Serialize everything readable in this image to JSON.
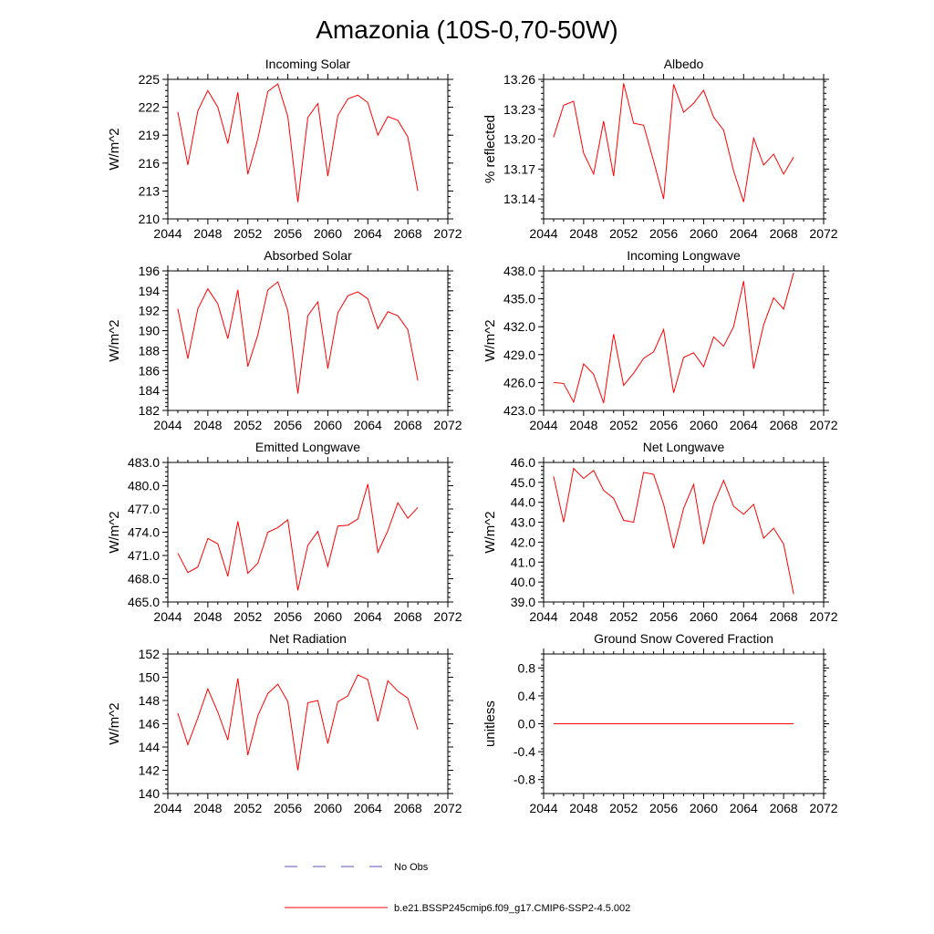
{
  "title": "Amazonia (10S-0,70-50W)",
  "colors": {
    "model": "#ff0000",
    "obs": "#5555bb",
    "frame": "#000000"
  },
  "legend": [
    {
      "label": "No Obs",
      "style": "dashed",
      "color": "#5555bb"
    },
    {
      "label": "b.e21.BSSP245cmip6.f09_g17.CMIP6-SSP2-4.5.002",
      "style": "solid",
      "color": "#ff0000"
    }
  ],
  "chart_data": [
    {
      "type": "line",
      "title": "Incoming Solar",
      "xlabel": "",
      "ylabel": "W/m^2",
      "xlim": [
        2044,
        2072
      ],
      "ylim": [
        210,
        225
      ],
      "xticks": [
        2044,
        2048,
        2052,
        2056,
        2060,
        2064,
        2068,
        2072
      ],
      "yticks": [
        "210",
        "213",
        "216",
        "219",
        "222",
        "225"
      ],
      "x": [
        2045,
        2046,
        2047,
        2048,
        2049,
        2050,
        2051,
        2052,
        2053,
        2054,
        2055,
        2056,
        2057,
        2058,
        2059,
        2060,
        2061,
        2062,
        2063,
        2064,
        2065,
        2066,
        2067,
        2068,
        2069
      ],
      "series": [
        {
          "name": "b.e21.BSSP245cmip6.f09_g17.CMIP6-SSP2-4.5.002",
          "values": [
            221.5,
            215.8,
            221.6,
            223.8,
            222.0,
            218.1,
            223.6,
            214.8,
            218.6,
            223.7,
            224.5,
            221.0,
            211.8,
            220.9,
            222.4,
            214.6,
            221.1,
            222.9,
            223.3,
            222.5,
            219.0,
            221.0,
            220.6,
            218.8,
            213.0
          ]
        }
      ]
    },
    {
      "type": "line",
      "title": "Albedo",
      "xlabel": "",
      "ylabel": "% reflected",
      "xlim": [
        2044,
        2072
      ],
      "ylim": [
        13.12,
        13.26
      ],
      "xticks": [
        2044,
        2048,
        2052,
        2056,
        2060,
        2064,
        2068,
        2072
      ],
      "yticks": [
        "13.14",
        "13.17",
        "13.20",
        "13.23",
        "13.26"
      ],
      "x": [
        2045,
        2046,
        2047,
        2048,
        2049,
        2050,
        2051,
        2052,
        2053,
        2054,
        2055,
        2056,
        2057,
        2058,
        2059,
        2060,
        2061,
        2062,
        2063,
        2064,
        2065,
        2066,
        2067,
        2068,
        2069
      ],
      "series": [
        {
          "name": "b.e21.BSSP245cmip6.f09_g17.CMIP6-SSP2-4.5.002",
          "values": [
            13.202,
            13.234,
            13.238,
            13.186,
            13.165,
            13.218,
            13.163,
            13.256,
            13.216,
            13.214,
            13.178,
            13.14,
            13.255,
            13.227,
            13.236,
            13.249,
            13.222,
            13.209,
            13.168,
            13.137,
            13.201,
            13.174,
            13.185,
            13.165,
            13.182
          ]
        }
      ]
    },
    {
      "type": "line",
      "title": "Absorbed Solar",
      "xlabel": "",
      "ylabel": "W/m^2",
      "xlim": [
        2044,
        2072
      ],
      "ylim": [
        182,
        196
      ],
      "xticks": [
        2044,
        2048,
        2052,
        2056,
        2060,
        2064,
        2068,
        2072
      ],
      "yticks": [
        "182",
        "184",
        "186",
        "188",
        "190",
        "192",
        "194",
        "196"
      ],
      "x": [
        2045,
        2046,
        2047,
        2048,
        2049,
        2050,
        2051,
        2052,
        2053,
        2054,
        2055,
        2056,
        2057,
        2058,
        2059,
        2060,
        2061,
        2062,
        2063,
        2064,
        2065,
        2066,
        2067,
        2068,
        2069
      ],
      "series": [
        {
          "name": "b.e21.BSSP245cmip6.f09_g17.CMIP6-SSP2-4.5.002",
          "values": [
            192.2,
            187.2,
            192.2,
            194.2,
            192.7,
            189.2,
            194.1,
            186.4,
            189.6,
            194.1,
            194.9,
            192.0,
            183.7,
            191.5,
            192.9,
            186.2,
            191.8,
            193.5,
            193.9,
            193.2,
            190.2,
            191.9,
            191.5,
            190.1,
            185.0
          ]
        }
      ]
    },
    {
      "type": "line",
      "title": "Incoming Longwave",
      "xlabel": "",
      "ylabel": "W/m^2",
      "xlim": [
        2044,
        2072
      ],
      "ylim": [
        423,
        438
      ],
      "xticks": [
        2044,
        2048,
        2052,
        2056,
        2060,
        2064,
        2068,
        2072
      ],
      "yticks": [
        "423.0",
        "426.0",
        "429.0",
        "432.0",
        "435.0",
        "438.0"
      ],
      "x": [
        2045,
        2046,
        2047,
        2048,
        2049,
        2050,
        2051,
        2052,
        2053,
        2054,
        2055,
        2056,
        2057,
        2058,
        2059,
        2060,
        2061,
        2062,
        2063,
        2064,
        2065,
        2066,
        2067,
        2068,
        2069
      ],
      "series": [
        {
          "name": "b.e21.BSSP245cmip6.f09_g17.CMIP6-SSP2-4.5.002",
          "values": [
            426.0,
            425.9,
            423.9,
            428.0,
            426.9,
            423.8,
            431.2,
            425.7,
            427.0,
            428.6,
            429.3,
            431.7,
            424.9,
            428.7,
            429.2,
            427.7,
            430.9,
            429.9,
            432.0,
            436.9,
            427.5,
            432.2,
            435.1,
            433.9,
            437.8
          ]
        }
      ]
    },
    {
      "type": "line",
      "title": "Emitted Longwave",
      "xlabel": "",
      "ylabel": "W/m^2",
      "xlim": [
        2044,
        2072
      ],
      "ylim": [
        465,
        483
      ],
      "xticks": [
        2044,
        2048,
        2052,
        2056,
        2060,
        2064,
        2068,
        2072
      ],
      "yticks": [
        "465.0",
        "468.0",
        "471.0",
        "474.0",
        "477.0",
        "480.0",
        "483.0"
      ],
      "x": [
        2045,
        2046,
        2047,
        2048,
        2049,
        2050,
        2051,
        2052,
        2053,
        2054,
        2055,
        2056,
        2057,
        2058,
        2059,
        2060,
        2061,
        2062,
        2063,
        2064,
        2065,
        2066,
        2067,
        2068,
        2069
      ],
      "series": [
        {
          "name": "b.e21.BSSP245cmip6.f09_g17.CMIP6-SSP2-4.5.002",
          "values": [
            471.3,
            468.8,
            469.5,
            473.2,
            472.5,
            468.3,
            475.4,
            468.7,
            470.0,
            474.0,
            474.6,
            475.6,
            466.5,
            472.3,
            474.1,
            469.6,
            474.8,
            474.9,
            475.7,
            480.2,
            471.4,
            474.2,
            477.8,
            475.8,
            477.2
          ]
        }
      ]
    },
    {
      "type": "line",
      "title": "Net Longwave",
      "xlabel": "",
      "ylabel": "W/m^2",
      "xlim": [
        2044,
        2072
      ],
      "ylim": [
        39,
        46
      ],
      "xticks": [
        2044,
        2048,
        2052,
        2056,
        2060,
        2064,
        2068,
        2072
      ],
      "yticks": [
        "39.0",
        "40.0",
        "41.0",
        "42.0",
        "43.0",
        "44.0",
        "45.0",
        "46.0"
      ],
      "x": [
        2045,
        2046,
        2047,
        2048,
        2049,
        2050,
        2051,
        2052,
        2053,
        2054,
        2055,
        2056,
        2057,
        2058,
        2059,
        2060,
        2061,
        2062,
        2063,
        2064,
        2065,
        2066,
        2067,
        2068,
        2069
      ],
      "series": [
        {
          "name": "b.e21.BSSP245cmip6.f09_g17.CMIP6-SSP2-4.5.002",
          "values": [
            45.3,
            43.0,
            45.7,
            45.2,
            45.6,
            44.6,
            44.2,
            43.1,
            43.0,
            45.5,
            45.4,
            43.9,
            41.7,
            43.7,
            44.9,
            41.9,
            43.9,
            45.1,
            43.8,
            43.4,
            43.9,
            42.2,
            42.7,
            41.9,
            39.4
          ]
        }
      ]
    },
    {
      "type": "line",
      "title": "Net Radiation",
      "xlabel": "",
      "ylabel": "W/m^2",
      "xlim": [
        2044,
        2072
      ],
      "ylim": [
        140,
        152
      ],
      "xticks": [
        2044,
        2048,
        2052,
        2056,
        2060,
        2064,
        2068,
        2072
      ],
      "yticks": [
        "140",
        "142",
        "144",
        "146",
        "148",
        "150",
        "152"
      ],
      "x": [
        2045,
        2046,
        2047,
        2048,
        2049,
        2050,
        2051,
        2052,
        2053,
        2054,
        2055,
        2056,
        2057,
        2058,
        2059,
        2060,
        2061,
        2062,
        2063,
        2064,
        2065,
        2066,
        2067,
        2068,
        2069
      ],
      "series": [
        {
          "name": "b.e21.BSSP245cmip6.f09_g17.CMIP6-SSP2-4.5.002",
          "values": [
            146.9,
            144.2,
            146.5,
            149.0,
            147.0,
            144.6,
            149.9,
            143.3,
            146.7,
            148.6,
            149.4,
            147.9,
            142.0,
            147.8,
            148.0,
            144.3,
            147.9,
            148.4,
            150.2,
            149.8,
            146.2,
            149.7,
            148.8,
            148.2,
            145.5
          ]
        }
      ]
    },
    {
      "type": "line",
      "title": "Ground Snow Covered Fraction",
      "xlabel": "",
      "ylabel": "unitless",
      "xlim": [
        2044,
        2072
      ],
      "ylim": [
        -1.0,
        1.0
      ],
      "xticks": [
        2044,
        2048,
        2052,
        2056,
        2060,
        2064,
        2068,
        2072
      ],
      "yticks": [
        "-0.8",
        "-0.4",
        "0.0",
        "0.4",
        "0.8"
      ],
      "x": [
        2045,
        2046,
        2047,
        2048,
        2049,
        2050,
        2051,
        2052,
        2053,
        2054,
        2055,
        2056,
        2057,
        2058,
        2059,
        2060,
        2061,
        2062,
        2063,
        2064,
        2065,
        2066,
        2067,
        2068,
        2069
      ],
      "series": [
        {
          "name": "b.e21.BSSP245cmip6.f09_g17.CMIP6-SSP2-4.5.002",
          "values": [
            0,
            0,
            0,
            0,
            0,
            0,
            0,
            0,
            0,
            0,
            0,
            0,
            0,
            0,
            0,
            0,
            0,
            0,
            0,
            0,
            0,
            0,
            0,
            0,
            0
          ]
        }
      ]
    }
  ]
}
